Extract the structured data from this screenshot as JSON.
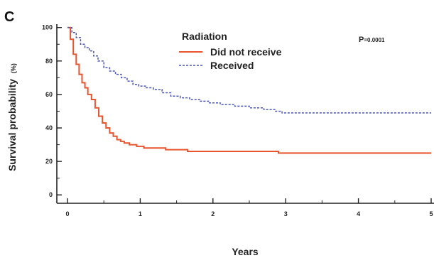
{
  "panel_label": "C",
  "chart_data": {
    "type": "line",
    "step": true,
    "xlabel": "Years",
    "ylabel": "Survival probability (%)",
    "ylabel_main": "Survival probability",
    "ylabel_unit": "(%)",
    "xlim": [
      0,
      5
    ],
    "ylim": [
      -5,
      102
    ],
    "x_ticks": [
      0,
      1,
      2,
      3,
      4,
      5
    ],
    "y_ticks": [
      0,
      20,
      40,
      60,
      80,
      100
    ],
    "grid": false,
    "legend_position": "top-center",
    "legend_title": "Radiation",
    "annotation": {
      "prefix": "P",
      "value": "=0.0001"
    },
    "series": [
      {
        "name": "Did not receive",
        "color": "#e8542e",
        "dash": "solid",
        "x": [
          0,
          0.04,
          0.08,
          0.12,
          0.16,
          0.2,
          0.24,
          0.28,
          0.33,
          0.38,
          0.43,
          0.48,
          0.53,
          0.58,
          0.63,
          0.68,
          0.73,
          0.78,
          0.85,
          0.95,
          1.05,
          1.2,
          1.35,
          1.5,
          1.65,
          1.75,
          2.9,
          5.0
        ],
        "y": [
          100,
          93,
          84,
          78,
          72,
          67,
          64,
          60,
          57,
          52,
          47,
          43,
          40,
          37,
          35,
          33,
          32,
          31,
          30,
          29,
          28,
          28,
          27,
          27,
          26,
          26,
          25,
          25
        ]
      },
      {
        "name": "Received",
        "color": "#4a54b8",
        "dash": "dashed",
        "x": [
          0,
          0.06,
          0.12,
          0.18,
          0.24,
          0.3,
          0.36,
          0.42,
          0.5,
          0.58,
          0.66,
          0.74,
          0.82,
          0.9,
          0.98,
          1.08,
          1.18,
          1.3,
          1.42,
          1.55,
          1.68,
          1.82,
          1.95,
          2.1,
          2.3,
          2.5,
          2.7,
          2.85,
          2.95,
          5.0
        ],
        "y": [
          100,
          97,
          94,
          90,
          88,
          86,
          83,
          80,
          76,
          74,
          72,
          70,
          68,
          66,
          65,
          64,
          63,
          61,
          59,
          58,
          57,
          56,
          55,
          54,
          53,
          52,
          51,
          50,
          49,
          49
        ]
      }
    ]
  }
}
